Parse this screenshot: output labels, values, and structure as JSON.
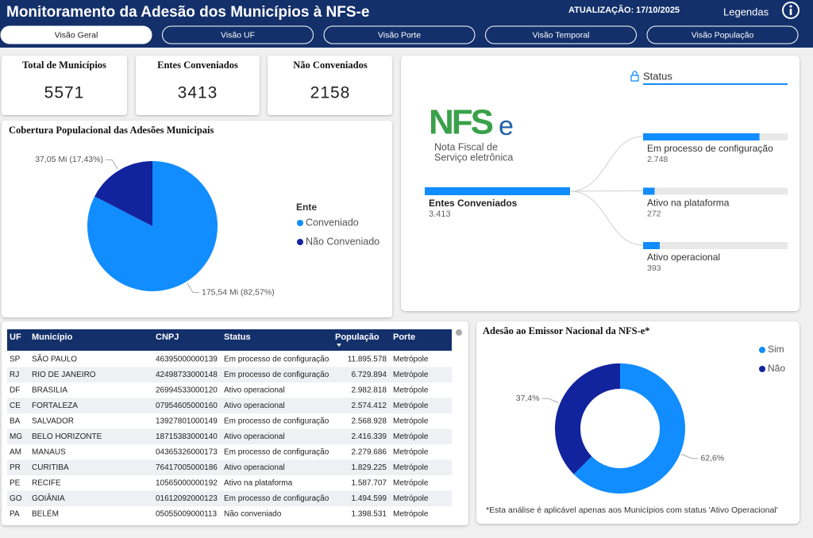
{
  "header": {
    "title": "Monitoramento da Adesão dos Municípios à NFS-e",
    "update_label": "ATUALIZAÇÃO:",
    "update_date": "17/10/2025",
    "legend_button": "Legendas"
  },
  "tabs": [
    "Visão Geral",
    "Visão UF",
    "Visão Porte",
    "Visão Temporal",
    "Visão População"
  ],
  "kpis": [
    {
      "label": "Total de Municípios",
      "value": 5571
    },
    {
      "label": "Entes Conveniados",
      "value": 3413
    },
    {
      "label": "Não Conveniados",
      "value": 2158
    }
  ],
  "logo": {
    "mark_main": "NFS",
    "mark_suffix": "e",
    "caption_1": "Nota Fiscal de",
    "caption_2": "Serviço eletrônica"
  },
  "chart_data": [
    {
      "type": "pie",
      "title": "Cobertura Populacional das Adesões Municipais",
      "legend_title": "Ente",
      "categories": [
        "Conveniado",
        "Não Conveniado"
      ],
      "values": [
        175.54,
        37.05
      ],
      "value_labels": [
        "175,54 Mi (82,57%)",
        "37,05 Mi (17,43%)"
      ],
      "colors": [
        "#118dff",
        "#12239e"
      ]
    },
    {
      "type": "decomposition",
      "title": "Status",
      "root": {
        "name": "Entes Conveniados",
        "value": 3413,
        "value_label": "3.413"
      },
      "categories": [
        "Em processo de configuração",
        "Ativo na plataforma",
        "Ativo operacional"
      ],
      "values": [
        2748,
        272,
        393
      ],
      "value_labels": [
        "2.748",
        "272",
        "393"
      ],
      "color": "#118dff",
      "track_color": "#e8e8e8"
    },
    {
      "type": "donut",
      "title": "Adesão ao Emissor Nacional da NFS-e*",
      "categories": [
        "Sim",
        "Não"
      ],
      "values": [
        62.6,
        37.4
      ],
      "value_labels": [
        "62,6%",
        "37,4%"
      ],
      "colors": [
        "#118dff",
        "#12239e"
      ],
      "note": "*Esta análise é aplicável apenas aos Municípios com status 'Ativo Operacional'"
    }
  ],
  "table": {
    "columns": [
      "UF",
      "Município",
      "CNPJ",
      "Status",
      "População",
      "Porte"
    ],
    "rows": [
      [
        "SP",
        "SÃO PAULO",
        "46395000000139",
        "Em processo de configuração",
        "11.895.578",
        "Metrópole"
      ],
      [
        "RJ",
        "RIO DE JANEIRO",
        "42498733000148",
        "Em processo de configuração",
        "6.729.894",
        "Metrópole"
      ],
      [
        "DF",
        "BRASILIA",
        "26994533000120",
        "Ativo operacional",
        "2.982.818",
        "Metrópole"
      ],
      [
        "CE",
        "FORTALEZA",
        "07954605000160",
        "Ativo operacional",
        "2.574.412",
        "Metrópole"
      ],
      [
        "BA",
        "SALVADOR",
        "13927801000149",
        "Em processo de configuração",
        "2.568.928",
        "Metrópole"
      ],
      [
        "MG",
        "BELO HORIZONTE",
        "18715383000140",
        "Ativo operacional",
        "2.416.339",
        "Metrópole"
      ],
      [
        "AM",
        "MANAUS",
        "04365326000173",
        "Em processo de configuração",
        "2.279.686",
        "Metrópole"
      ],
      [
        "PR",
        "CURITIBA",
        "76417005000186",
        "Ativo operacional",
        "1.829.225",
        "Metrópole"
      ],
      [
        "PE",
        "RECIFE",
        "10565000000192",
        "Ativo na plataforma",
        "1.587.707",
        "Metrópole"
      ],
      [
        "GO",
        "GOIÂNIA",
        "01612092000123",
        "Em processo de configuração",
        "1.494.599",
        "Metrópole"
      ],
      [
        "PA",
        "BELÉM",
        "05055009000113",
        "Não conveniado",
        "1.398.531",
        "Metrópole"
      ]
    ]
  }
}
